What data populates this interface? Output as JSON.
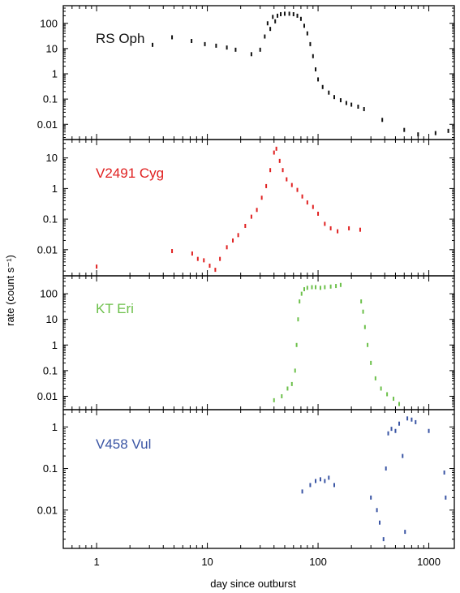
{
  "chart_data": {
    "type": "scatter",
    "xlabel": "day since outburst",
    "ylabel": "rate (count s⁻¹)",
    "xscale": "log",
    "xlim": [
      0.5,
      1700
    ],
    "x_ticks": [
      1,
      10,
      100,
      1000
    ],
    "x_tick_labels": [
      "1",
      "10",
      "100",
      "1000"
    ],
    "panels": [
      {
        "name": "RS Oph",
        "color": "#111111",
        "yscale": "log",
        "ylim": [
          0.0025,
          500
        ],
        "y_ticks": [
          0.01,
          0.1,
          1,
          10,
          100
        ],
        "y_tick_labels": [
          "0.01",
          "0.1",
          "1",
          "10",
          "100"
        ],
        "points": [
          {
            "x": 3.2,
            "y": 14
          },
          {
            "x": 4.8,
            "y": 28
          },
          {
            "x": 7.2,
            "y": 20
          },
          {
            "x": 9.5,
            "y": 15
          },
          {
            "x": 12,
            "y": 13
          },
          {
            "x": 15,
            "y": 11
          },
          {
            "x": 18,
            "y": 9
          },
          {
            "x": 25,
            "y": 6
          },
          {
            "x": 30,
            "y": 9
          },
          {
            "x": 33,
            "y": 30
          },
          {
            "x": 35,
            "y": 100
          },
          {
            "x": 37,
            "y": 60
          },
          {
            "x": 39,
            "y": 180
          },
          {
            "x": 41,
            "y": 120
          },
          {
            "x": 43,
            "y": 200
          },
          {
            "x": 46,
            "y": 230
          },
          {
            "x": 50,
            "y": 240
          },
          {
            "x": 55,
            "y": 240
          },
          {
            "x": 60,
            "y": 230
          },
          {
            "x": 65,
            "y": 200
          },
          {
            "x": 70,
            "y": 150
          },
          {
            "x": 75,
            "y": 80
          },
          {
            "x": 80,
            "y": 40
          },
          {
            "x": 85,
            "y": 15
          },
          {
            "x": 90,
            "y": 5
          },
          {
            "x": 95,
            "y": 1.5
          },
          {
            "x": 100,
            "y": 0.6
          },
          {
            "x": 110,
            "y": 0.3
          },
          {
            "x": 125,
            "y": 0.18
          },
          {
            "x": 140,
            "y": 0.12
          },
          {
            "x": 160,
            "y": 0.09
          },
          {
            "x": 180,
            "y": 0.07
          },
          {
            "x": 200,
            "y": 0.06
          },
          {
            "x": 230,
            "y": 0.05
          },
          {
            "x": 260,
            "y": 0.04
          },
          {
            "x": 380,
            "y": 0.015
          },
          {
            "x": 600,
            "y": 0.006
          },
          {
            "x": 800,
            "y": 0.004
          },
          {
            "x": 1150,
            "y": 0.0045
          },
          {
            "x": 1500,
            "y": 0.0055
          }
        ]
      },
      {
        "name": "V2491 Cyg",
        "color": "#e02020",
        "yscale": "log",
        "ylim": [
          0.0014,
          40
        ],
        "y_ticks": [
          0.01,
          0.1,
          1,
          10
        ],
        "y_tick_labels": [
          "0.01",
          "0.1",
          "1",
          "10"
        ],
        "points": [
          {
            "x": 1.0,
            "y": 0.0028
          },
          {
            "x": 4.8,
            "y": 0.009
          },
          {
            "x": 7.3,
            "y": 0.0075
          },
          {
            "x": 8.2,
            "y": 0.005
          },
          {
            "x": 9.3,
            "y": 0.0045
          },
          {
            "x": 10.5,
            "y": 0.003
          },
          {
            "x": 11.8,
            "y": 0.0022
          },
          {
            "x": 13,
            "y": 0.005
          },
          {
            "x": 15,
            "y": 0.012
          },
          {
            "x": 17,
            "y": 0.02
          },
          {
            "x": 19,
            "y": 0.03
          },
          {
            "x": 22,
            "y": 0.06
          },
          {
            "x": 25,
            "y": 0.12
          },
          {
            "x": 28,
            "y": 0.2
          },
          {
            "x": 31,
            "y": 0.5
          },
          {
            "x": 34,
            "y": 1.2
          },
          {
            "x": 37,
            "y": 4
          },
          {
            "x": 40,
            "y": 15
          },
          {
            "x": 42,
            "y": 20
          },
          {
            "x": 45,
            "y": 8
          },
          {
            "x": 48,
            "y": 4
          },
          {
            "x": 52,
            "y": 2
          },
          {
            "x": 58,
            "y": 1.3
          },
          {
            "x": 65,
            "y": 0.9
          },
          {
            "x": 72,
            "y": 0.55
          },
          {
            "x": 80,
            "y": 0.35
          },
          {
            "x": 90,
            "y": 0.25
          },
          {
            "x": 100,
            "y": 0.15
          },
          {
            "x": 115,
            "y": 0.07
          },
          {
            "x": 130,
            "y": 0.05
          },
          {
            "x": 150,
            "y": 0.04
          },
          {
            "x": 190,
            "y": 0.05
          },
          {
            "x": 240,
            "y": 0.045
          }
        ]
      },
      {
        "name": "KT Eri",
        "color": "#6cc04a",
        "yscale": "log",
        "ylim": [
          0.003,
          500
        ],
        "y_ticks": [
          0.01,
          0.1,
          1,
          10,
          100
        ],
        "y_tick_labels": [
          "0.01",
          "0.1",
          "1",
          "10",
          "100"
        ],
        "points": [
          {
            "x": 40,
            "y": 0.007
          },
          {
            "x": 47,
            "y": 0.01
          },
          {
            "x": 53,
            "y": 0.02
          },
          {
            "x": 58,
            "y": 0.03
          },
          {
            "x": 62,
            "y": 0.1
          },
          {
            "x": 64,
            "y": 1
          },
          {
            "x": 66,
            "y": 10
          },
          {
            "x": 68,
            "y": 50
          },
          {
            "x": 71,
            "y": 100
          },
          {
            "x": 75,
            "y": 150
          },
          {
            "x": 80,
            "y": 170
          },
          {
            "x": 88,
            "y": 180
          },
          {
            "x": 95,
            "y": 180
          },
          {
            "x": 105,
            "y": 170
          },
          {
            "x": 115,
            "y": 180
          },
          {
            "x": 130,
            "y": 190
          },
          {
            "x": 145,
            "y": 200
          },
          {
            "x": 160,
            "y": 220
          },
          {
            "x": 245,
            "y": 50
          },
          {
            "x": 255,
            "y": 20
          },
          {
            "x": 265,
            "y": 5
          },
          {
            "x": 280,
            "y": 1
          },
          {
            "x": 300,
            "y": 0.2
          },
          {
            "x": 330,
            "y": 0.05
          },
          {
            "x": 370,
            "y": 0.02
          },
          {
            "x": 420,
            "y": 0.012
          },
          {
            "x": 480,
            "y": 0.008
          },
          {
            "x": 540,
            "y": 0.005
          }
        ]
      },
      {
        "name": "V458 Vul",
        "color": "#3a55a4",
        "yscale": "log",
        "ylim": [
          0.0012,
          2.6
        ],
        "y_ticks": [
          0.01,
          0.1,
          1
        ],
        "y_tick_labels": [
          "0.01",
          "0.1",
          "1"
        ],
        "points": [
          {
            "x": 72,
            "y": 0.028
          },
          {
            "x": 85,
            "y": 0.04
          },
          {
            "x": 95,
            "y": 0.05
          },
          {
            "x": 105,
            "y": 0.055
          },
          {
            "x": 115,
            "y": 0.05
          },
          {
            "x": 125,
            "y": 0.06
          },
          {
            "x": 140,
            "y": 0.04
          },
          {
            "x": 300,
            "y": 0.02
          },
          {
            "x": 340,
            "y": 0.01
          },
          {
            "x": 360,
            "y": 0.005
          },
          {
            "x": 390,
            "y": 0.002
          },
          {
            "x": 410,
            "y": 0.1
          },
          {
            "x": 430,
            "y": 0.7
          },
          {
            "x": 460,
            "y": 0.9
          },
          {
            "x": 500,
            "y": 0.8
          },
          {
            "x": 540,
            "y": 1.2
          },
          {
            "x": 580,
            "y": 0.2
          },
          {
            "x": 610,
            "y": 0.003
          },
          {
            "x": 640,
            "y": 1.6
          },
          {
            "x": 700,
            "y": 1.5
          },
          {
            "x": 760,
            "y": 1.3
          },
          {
            "x": 1000,
            "y": 0.8
          },
          {
            "x": 1380,
            "y": 0.08
          },
          {
            "x": 1420,
            "y": 0.02
          }
        ]
      }
    ]
  }
}
